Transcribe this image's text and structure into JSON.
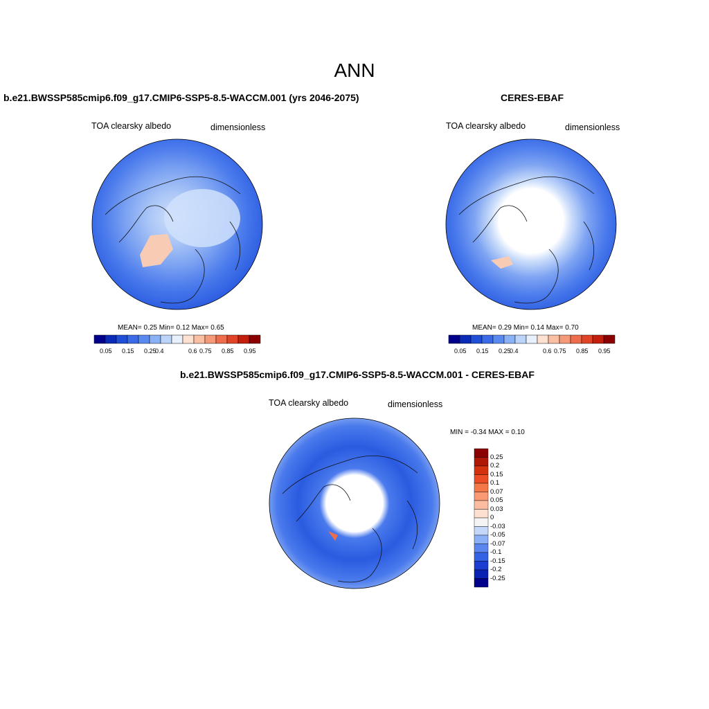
{
  "main_title": "ANN",
  "panels": [
    {
      "title": "b.e21.BWSSP585cmip6.f09_g17.CMIP6-SSP5-8.5-WACCM.001 (yrs 2046-2075)",
      "variable": "TOA clearsky albedo",
      "units": "dimensionless",
      "stats": "MEAN=   0.25  Min=   0.12  Max=   0.65"
    },
    {
      "title": "CERES-EBAF",
      "variable": "TOA clearsky albedo",
      "units": "dimensionless",
      "stats": "MEAN=   0.29  Min=   0.14  Max=   0.70"
    },
    {
      "title": "b.e21.BWSSP585cmip6.f09_g17.CMIP6-SSP5-8.5-WACCM.001 - CERES-EBAF",
      "variable": "TOA clearsky albedo",
      "units": "dimensionless",
      "stats": "MIN =  -0.34 MAX =   0.10"
    }
  ],
  "colorbar_abs": {
    "labels": [
      "0.05",
      "0.15",
      "0.25",
      "0.4",
      "0.6",
      "0.75",
      "0.85",
      "0.95"
    ],
    "colors": [
      "#00008b",
      "#0a2ab8",
      "#1f4fd6",
      "#3a6ae6",
      "#5a8af0",
      "#8ab0f6",
      "#bcd4fa",
      "#e8f0fc",
      "#fde2d2",
      "#f9c0a4",
      "#f59a78",
      "#ee6e4c",
      "#e14426",
      "#c41f0c",
      "#8b0000"
    ]
  },
  "colorbar_diff": {
    "labels": [
      "0.25",
      "0.2",
      "0.15",
      "0.1",
      "0.07",
      "0.05",
      "0.03",
      "0",
      "-0.03",
      "-0.05",
      "-0.07",
      "-0.1",
      "-0.15",
      "-0.2",
      "-0.25"
    ],
    "colors": [
      "#8b0000",
      "#b01806",
      "#d4320e",
      "#ec4d24",
      "#f57848",
      "#f99a74",
      "#fbbca0",
      "#fde0d0",
      "#f4f4f4",
      "#c4d6fa",
      "#8cb0f6",
      "#5a86f0",
      "#3462e4",
      "#1a3ed2",
      "#0a22b4",
      "#00008b"
    ]
  },
  "map_colors": {
    "ocean_deep": "#2a5be0",
    "ocean_mid": "#4a7aec",
    "mid": "#7ea4f2",
    "light": "#a8c4f6",
    "pale": "#cfe0fb",
    "ice": "#ffffff",
    "greenland": "#f8cbb4"
  }
}
